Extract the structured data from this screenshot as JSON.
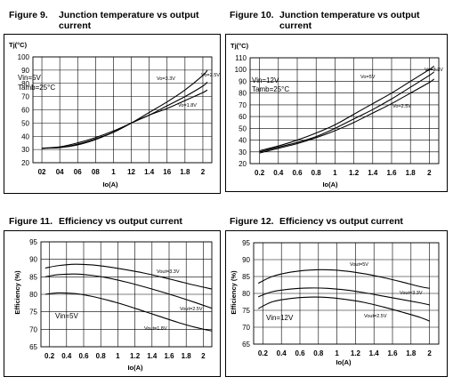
{
  "captions": [
    {
      "number": "Figure 9.",
      "title": "Junction temperature vs output current"
    },
    {
      "number": "Figure 10.",
      "title": "Junction temperature vs output current"
    },
    {
      "number": "Figure 11.",
      "title": "Efficiency vs output current"
    },
    {
      "number": "Figure 12.",
      "title": "Efficiency vs output current"
    }
  ],
  "chart_data": [
    {
      "type": "line",
      "title": "Junction temperature vs output current",
      "xlabel": "Io(A)",
      "ylabel": "Tj(°C)",
      "xlim": [
        0.1,
        2.1
      ],
      "ylim": [
        20,
        100
      ],
      "xticks": [
        "02",
        "04",
        "06",
        "08",
        "1",
        "12",
        "1.4",
        "16",
        "1.8",
        "2"
      ],
      "yticks": [
        "20",
        "30",
        "40",
        "50",
        "60",
        "70",
        "80",
        "90",
        "100"
      ],
      "annotations": [
        "Vin=5V",
        "Tamb=25°C"
      ],
      "series": [
        {
          "name": "Vo=2.5V",
          "x": [
            0.2,
            0.4,
            0.6,
            0.8,
            1.0,
            1.2,
            1.4,
            1.6,
            1.8,
            2.0,
            2.05
          ],
          "y": [
            31,
            31.5,
            34,
            38,
            43,
            50,
            56,
            63,
            70,
            78,
            81
          ]
        },
        {
          "name": "Vo=3.3V",
          "x": [
            0.2,
            0.4,
            0.6,
            0.8,
            1.0,
            1.2,
            1.4,
            1.6,
            1.8,
            2.0,
            2.05
          ],
          "y": [
            31,
            31.5,
            33.5,
            37.5,
            43,
            50,
            58,
            66,
            75,
            86,
            90
          ]
        },
        {
          "name": "Vo=1.8V",
          "x": [
            0.2,
            0.4,
            0.6,
            0.8,
            1.0,
            1.2,
            1.4,
            1.6,
            1.8,
            2.0,
            2.05
          ],
          "y": [
            31,
            32,
            35,
            39,
            44,
            50,
            56,
            61,
            67,
            73,
            75
          ]
        }
      ]
    },
    {
      "type": "line",
      "title": "Junction temperature vs output current",
      "xlabel": "Io(A)",
      "ylabel": "Tj(°C)",
      "xlim": [
        0.1,
        2.1
      ],
      "ylim": [
        20,
        110
      ],
      "xticks": [
        "0.2",
        "0.4",
        "0.6",
        "0.8",
        "1",
        "1.2",
        "1.4",
        "1.6",
        "1.8",
        "2"
      ],
      "yticks": [
        "20",
        "30",
        "40",
        "50",
        "60",
        "70",
        "80",
        "90",
        "100",
        "110"
      ],
      "annotations": [
        "Vin=12V",
        "Tamb=25°C"
      ],
      "series": [
        {
          "name": "Vo=3.3V",
          "x": [
            0.2,
            0.4,
            0.6,
            0.8,
            1.0,
            1.2,
            1.4,
            1.6,
            1.8,
            2.0,
            2.05
          ],
          "y": [
            31,
            35,
            40,
            46,
            53,
            62,
            71,
            80,
            90,
            100,
            103
          ]
        },
        {
          "name": "Vo=5V",
          "x": [
            0.2,
            0.4,
            0.6,
            0.8,
            1.0,
            1.2,
            1.4,
            1.6,
            1.8,
            2.0,
            2.05
          ],
          "y": [
            30,
            34,
            38,
            43,
            50,
            58,
            66,
            75,
            85,
            95,
            98
          ]
        },
        {
          "name": "Vo=2.5V",
          "x": [
            0.2,
            0.4,
            0.6,
            0.8,
            1.0,
            1.2,
            1.4,
            1.6,
            1.8,
            2.0,
            2.05
          ],
          "y": [
            29,
            33,
            37,
            42,
            48,
            55,
            63,
            71,
            80,
            89,
            92
          ]
        }
      ]
    },
    {
      "type": "line",
      "title": "Efficiency vs output current",
      "xlabel": "Io(A)",
      "ylabel": "Efficiency (%)",
      "xlim": [
        0.1,
        2.1
      ],
      "ylim": [
        65,
        95
      ],
      "xticks": [
        "0.2",
        "0.4",
        "0.6",
        "0.8",
        "1",
        "1.2",
        "1.4",
        "1.6",
        "1.8",
        "2"
      ],
      "yticks": [
        "65",
        "70",
        "75",
        "80",
        "85",
        "90",
        "95"
      ],
      "annotations": [
        "Vin=5V"
      ],
      "series": [
        {
          "name": "Vout=3.3V",
          "x": [
            0.15,
            0.3,
            0.5,
            0.7,
            0.9,
            1.1,
            1.3,
            1.5,
            1.7,
            1.9,
            2.1
          ],
          "y": [
            87.5,
            88.2,
            88.6,
            88.4,
            87.8,
            87.0,
            86.1,
            85.0,
            83.8,
            82.6,
            81.5
          ]
        },
        {
          "name": "Vout=2.5V",
          "x": [
            0.15,
            0.3,
            0.5,
            0.7,
            0.9,
            1.1,
            1.3,
            1.5,
            1.7,
            1.9,
            2.1
          ],
          "y": [
            85.0,
            85.6,
            85.8,
            85.4,
            84.6,
            83.5,
            82.2,
            80.8,
            79.3,
            77.7,
            76.0
          ]
        },
        {
          "name": "Vout=1.8V",
          "x": [
            0.15,
            0.3,
            0.5,
            0.7,
            0.9,
            1.1,
            1.3,
            1.5,
            1.7,
            1.9,
            2.1
          ],
          "y": [
            80.0,
            80.4,
            80.2,
            79.4,
            78.2,
            76.8,
            75.2,
            73.6,
            72.0,
            70.6,
            69.5
          ]
        }
      ]
    },
    {
      "type": "line",
      "title": "Efficiency vs output current",
      "xlabel": "Io(A)",
      "ylabel": "Efficiency (%)",
      "xlim": [
        0.1,
        2.1
      ],
      "ylim": [
        65,
        95
      ],
      "xticks": [
        "0.2",
        "0.4",
        "0.6",
        "0.8",
        "1",
        "1.2",
        "1.4",
        "1.6",
        "1.8",
        "2"
      ],
      "yticks": [
        "65",
        "70",
        "75",
        "80",
        "85",
        "90",
        "95"
      ],
      "annotations": [
        "Vin=12V"
      ],
      "series": [
        {
          "name": "Vout=5V",
          "x": [
            0.15,
            0.3,
            0.5,
            0.7,
            0.9,
            1.1,
            1.3,
            1.5,
            1.7,
            1.9,
            2.0
          ],
          "y": [
            83.0,
            85.0,
            86.3,
            86.9,
            87.0,
            86.6,
            85.8,
            84.7,
            83.4,
            82.0,
            81.5
          ]
        },
        {
          "name": "Vout=3.3V",
          "x": [
            0.15,
            0.3,
            0.5,
            0.7,
            0.9,
            1.1,
            1.3,
            1.5,
            1.7,
            1.9,
            2.0
          ],
          "y": [
            79.0,
            80.5,
            81.3,
            81.6,
            81.5,
            81.0,
            80.2,
            79.2,
            78.2,
            77.2,
            76.6
          ]
        },
        {
          "name": "Vout=2.5V",
          "x": [
            0.15,
            0.3,
            0.5,
            0.7,
            0.9,
            1.1,
            1.3,
            1.5,
            1.7,
            1.9,
            2.0
          ],
          "y": [
            75.5,
            77.5,
            78.5,
            78.9,
            78.8,
            78.2,
            77.3,
            76.0,
            74.5,
            72.9,
            71.8
          ]
        }
      ]
    }
  ]
}
